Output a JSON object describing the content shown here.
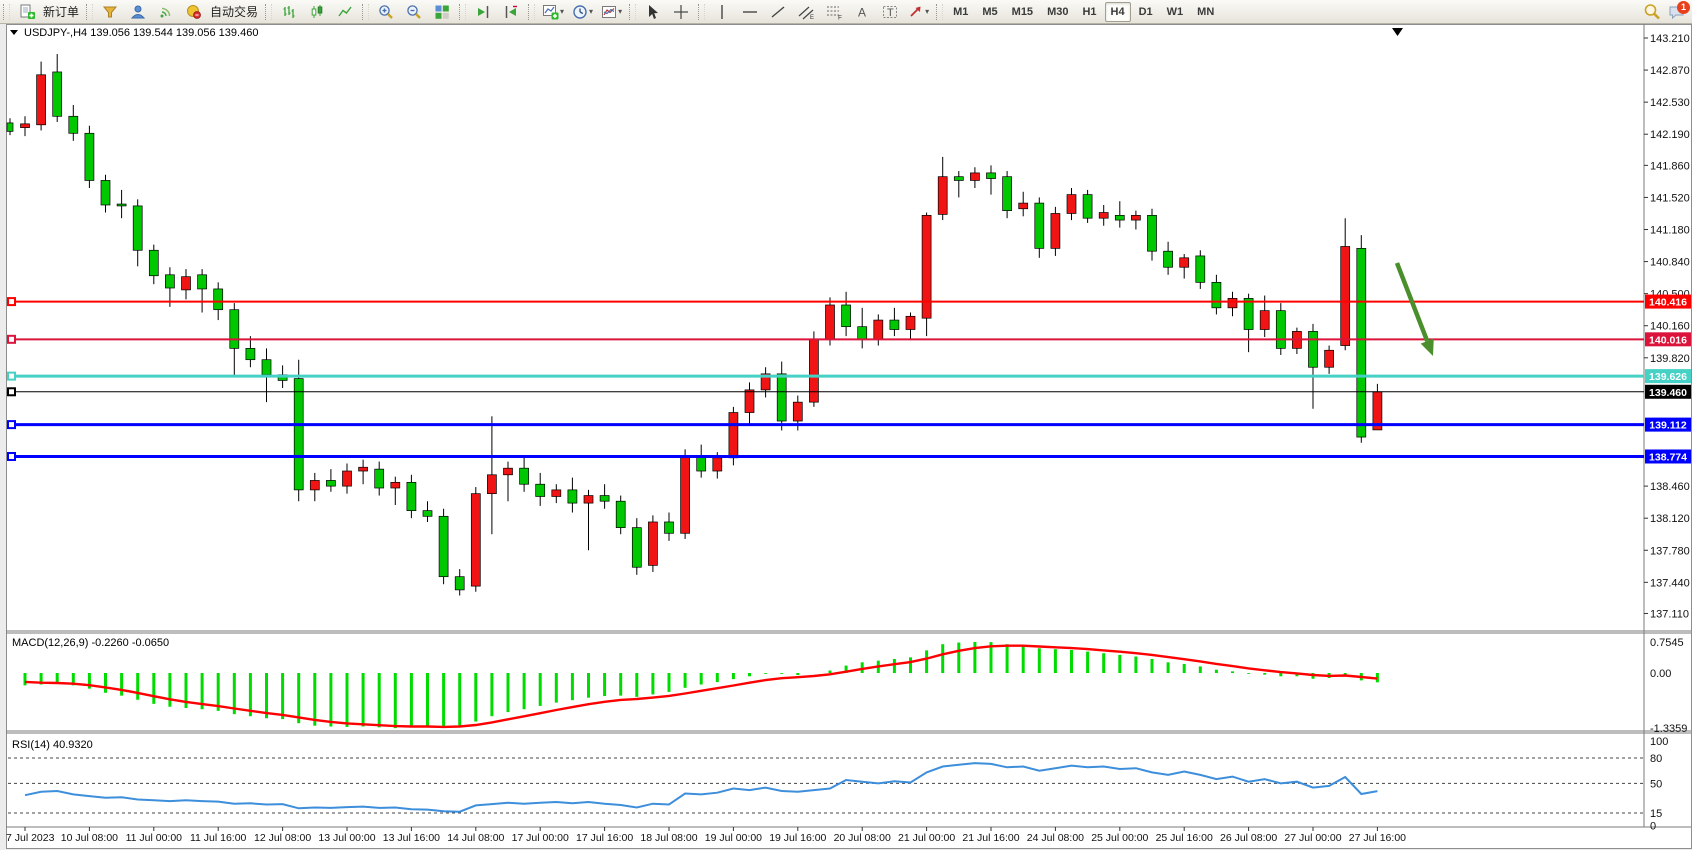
{
  "toolbar": {
    "new_order_label": "新订单",
    "autotrade_label": "自动交易",
    "timeframes": [
      "M1",
      "M5",
      "M15",
      "M30",
      "H1",
      "H4",
      "D1",
      "W1",
      "MN"
    ],
    "active_timeframe": "H4",
    "chat_badge": "1"
  },
  "chart": {
    "title_line": "USDJPY-,H4  139.056 139.544 139.056 139.460",
    "macd_label": "MACD(12,26,9) -0.2260 -0.0650",
    "rsi_label": "RSI(14) 40.9320"
  },
  "chart_data": {
    "type": "candlestick",
    "symbol": "USDJPY-",
    "timeframe": "H4",
    "current_bar": {
      "open": 139.056,
      "high": 139.544,
      "low": 139.056,
      "close": 139.46
    },
    "colors": {
      "bull": "#f01414",
      "bear": "#00c800",
      "wick": "#000000",
      "macd_hist": "#00dc00",
      "macd_signal": "#ff0000",
      "rsi_line": "#3d8edb",
      "annotation_arrow": "#4a8f2c"
    },
    "x_labels": [
      "7 Jul 2023",
      "10 Jul 08:00",
      "11 Jul 00:00",
      "11 Jul 16:00",
      "12 Jul 08:00",
      "13 Jul 00:00",
      "13 Jul 16:00",
      "14 Jul 08:00",
      "17 Jul 00:00",
      "17 Jul 16:00",
      "18 Jul 08:00",
      "19 Jul 00:00",
      "19 Jul 16:00",
      "20 Jul 08:00",
      "21 Jul 00:00",
      "21 Jul 16:00",
      "24 Jul 08:00",
      "25 Jul 00:00",
      "25 Jul 16:00",
      "26 Jul 08:00",
      "27 Jul 00:00",
      "27 Jul 16:00"
    ],
    "label_every": 4,
    "price_ticks": [
      "143.210",
      "142.870",
      "142.530",
      "142.190",
      "141.860",
      "141.520",
      "141.180",
      "140.840",
      "140.500",
      "140.160",
      "139.820",
      "138.460",
      "138.120",
      "137.780",
      "137.440",
      "137.110"
    ],
    "levels": [
      {
        "price": 140.416,
        "color": "#ff0000",
        "width": 2
      },
      {
        "price": 140.016,
        "color": "#dc143c",
        "width": 2
      },
      {
        "price": 139.626,
        "color": "#45d1c5",
        "width": 3
      },
      {
        "price": 139.46,
        "color": "#000000",
        "width": 1
      },
      {
        "price": 139.112,
        "color": "#0000ff",
        "width": 3
      },
      {
        "price": 138.774,
        "color": "#0000ff",
        "width": 3
      }
    ],
    "pre_candle": [
      142.31,
      142.36,
      142.18,
      142.22
    ],
    "candles": [
      [
        142.26,
        142.38,
        142.17,
        142.3
      ],
      [
        142.29,
        142.96,
        142.23,
        142.82
      ],
      [
        142.85,
        143.04,
        142.32,
        142.38
      ],
      [
        142.38,
        142.5,
        142.12,
        142.2
      ],
      [
        142.2,
        142.28,
        141.62,
        141.7
      ],
      [
        141.7,
        141.76,
        141.36,
        141.44
      ],
      [
        141.45,
        141.6,
        141.3,
        141.43
      ],
      [
        141.43,
        141.5,
        140.79,
        140.96
      ],
      [
        140.96,
        141.02,
        140.6,
        140.69
      ],
      [
        140.7,
        140.78,
        140.36,
        140.56
      ],
      [
        140.54,
        140.76,
        140.44,
        140.68
      ],
      [
        140.7,
        140.76,
        140.3,
        140.55
      ],
      [
        140.55,
        140.62,
        140.22,
        140.33
      ],
      [
        140.33,
        140.4,
        139.62,
        139.92
      ],
      [
        139.92,
        140.05,
        139.72,
        139.8
      ],
      [
        139.8,
        139.92,
        139.35,
        139.64
      ],
      [
        139.64,
        139.74,
        139.5,
        139.58
      ],
      [
        139.6,
        139.8,
        138.3,
        138.42
      ],
      [
        138.42,
        138.6,
        138.3,
        138.52
      ],
      [
        138.52,
        138.64,
        138.4,
        138.46
      ],
      [
        138.46,
        138.7,
        138.38,
        138.62
      ],
      [
        138.62,
        138.74,
        138.48,
        138.66
      ],
      [
        138.64,
        138.72,
        138.36,
        138.44
      ],
      [
        138.44,
        138.56,
        138.26,
        138.5
      ],
      [
        138.5,
        138.58,
        138.12,
        138.2
      ],
      [
        138.2,
        138.3,
        138.08,
        138.14
      ],
      [
        138.14,
        138.22,
        137.42,
        137.5
      ],
      [
        137.5,
        137.58,
        137.3,
        137.36
      ],
      [
        137.4,
        138.45,
        137.34,
        138.38
      ],
      [
        138.38,
        139.2,
        137.95,
        138.58
      ],
      [
        138.58,
        138.72,
        138.3,
        138.65
      ],
      [
        138.65,
        138.78,
        138.4,
        138.48
      ],
      [
        138.48,
        138.6,
        138.25,
        138.35
      ],
      [
        138.35,
        138.48,
        138.28,
        138.42
      ],
      [
        138.42,
        138.55,
        138.18,
        138.28
      ],
      [
        138.28,
        138.42,
        137.78,
        138.36
      ],
      [
        138.36,
        138.48,
        138.22,
        138.3
      ],
      [
        138.3,
        138.36,
        137.95,
        138.02
      ],
      [
        138.02,
        138.12,
        137.52,
        137.6
      ],
      [
        137.62,
        138.15,
        137.55,
        138.08
      ],
      [
        138.08,
        138.18,
        137.88,
        137.96
      ],
      [
        137.96,
        138.85,
        137.9,
        138.78
      ],
      [
        138.78,
        138.9,
        138.55,
        138.62
      ],
      [
        138.62,
        138.82,
        138.54,
        138.76
      ],
      [
        138.76,
        139.3,
        138.68,
        139.24
      ],
      [
        139.24,
        139.56,
        139.12,
        139.48
      ],
      [
        139.48,
        139.72,
        139.4,
        139.65
      ],
      [
        139.65,
        139.78,
        139.05,
        139.15
      ],
      [
        139.15,
        139.42,
        139.05,
        139.35
      ],
      [
        139.35,
        140.1,
        139.3,
        140.02
      ],
      [
        140.02,
        140.46,
        139.95,
        140.38
      ],
      [
        140.38,
        140.52,
        140.05,
        140.15
      ],
      [
        140.15,
        140.35,
        139.92,
        140.02
      ],
      [
        140.02,
        140.28,
        139.95,
        140.22
      ],
      [
        140.22,
        140.35,
        140.05,
        140.12
      ],
      [
        140.12,
        140.3,
        140.02,
        140.26
      ],
      [
        140.24,
        141.36,
        140.05,
        141.33
      ],
      [
        141.34,
        141.95,
        141.28,
        141.74
      ],
      [
        141.74,
        141.8,
        141.52,
        141.7
      ],
      [
        141.7,
        141.84,
        141.62,
        141.78
      ],
      [
        141.78,
        141.86,
        141.55,
        141.72
      ],
      [
        141.74,
        141.8,
        141.3,
        141.38
      ],
      [
        141.4,
        141.58,
        141.32,
        141.46
      ],
      [
        141.46,
        141.52,
        140.88,
        140.98
      ],
      [
        140.98,
        141.42,
        140.9,
        141.35
      ],
      [
        141.35,
        141.62,
        141.28,
        141.55
      ],
      [
        141.55,
        141.6,
        141.25,
        141.3
      ],
      [
        141.3,
        141.44,
        141.22,
        141.36
      ],
      [
        141.33,
        141.48,
        141.2,
        141.28
      ],
      [
        141.28,
        141.38,
        141.18,
        141.33
      ],
      [
        141.33,
        141.4,
        140.85,
        140.95
      ],
      [
        140.95,
        141.05,
        140.7,
        140.78
      ],
      [
        140.78,
        140.92,
        140.66,
        140.88
      ],
      [
        140.9,
        140.96,
        140.55,
        140.62
      ],
      [
        140.62,
        140.7,
        140.28,
        140.35
      ],
      [
        140.35,
        140.52,
        140.26,
        140.45
      ],
      [
        140.45,
        140.5,
        139.88,
        140.12
      ],
      [
        140.12,
        140.48,
        140.04,
        140.32
      ],
      [
        140.32,
        140.4,
        139.85,
        139.92
      ],
      [
        139.92,
        140.14,
        139.86,
        140.1
      ],
      [
        140.1,
        140.18,
        139.28,
        139.72
      ],
      [
        139.72,
        139.95,
        139.65,
        139.9
      ],
      [
        139.95,
        141.3,
        139.9,
        141.0
      ],
      [
        140.98,
        141.12,
        138.92,
        138.98
      ],
      [
        139.056,
        139.544,
        139.056,
        139.46
      ]
    ],
    "macd": {
      "params": "12,26,9",
      "value": -0.226,
      "signal_value": -0.065,
      "axis": [
        "0.7545",
        "0.00",
        "-1.3359"
      ],
      "hist": [
        -0.3,
        -0.28,
        -0.26,
        -0.3,
        -0.38,
        -0.48,
        -0.55,
        -0.65,
        -0.75,
        -0.82,
        -0.85,
        -0.88,
        -0.92,
        -1.0,
        -1.05,
        -1.1,
        -1.12,
        -1.22,
        -1.28,
        -1.3,
        -1.31,
        -1.3,
        -1.32,
        -1.34,
        -1.32,
        -1.3,
        -1.33,
        -1.28,
        -1.18,
        -1.05,
        -0.95,
        -0.88,
        -0.8,
        -0.72,
        -0.66,
        -0.6,
        -0.56,
        -0.55,
        -0.58,
        -0.52,
        -0.46,
        -0.36,
        -0.28,
        -0.22,
        -0.15,
        -0.08,
        -0.02,
        -0.02,
        -0.05,
        0.0,
        0.06,
        0.18,
        0.26,
        0.3,
        0.34,
        0.38,
        0.55,
        0.7,
        0.74,
        0.7545,
        0.75,
        0.7,
        0.66,
        0.6,
        0.58,
        0.56,
        0.52,
        0.48,
        0.44,
        0.4,
        0.34,
        0.26,
        0.22,
        0.16,
        0.08,
        0.04,
        -0.02,
        -0.04,
        -0.08,
        -0.08,
        -0.14,
        -0.12,
        -0.04,
        -0.18,
        -0.226
      ],
      "signal_smoothing": 0.3
    },
    "rsi": {
      "period": 14,
      "value": 40.932,
      "axis": [
        "100",
        "80",
        "50",
        "15",
        "0"
      ],
      "level_lines": [
        80,
        50,
        15
      ],
      "values": [
        36,
        40,
        41,
        37,
        35,
        33,
        33.5,
        31,
        30,
        29,
        30,
        29,
        28.5,
        26,
        26.5,
        25,
        25.5,
        20.5,
        21.5,
        21,
        22,
        22.5,
        21,
        21.5,
        19.5,
        19,
        17,
        16.5,
        24,
        25.5,
        27,
        26,
        27,
        28,
        26.5,
        28,
        26,
        24.5,
        21.5,
        26,
        25,
        38,
        37,
        39,
        44,
        42,
        45,
        41,
        40,
        42,
        44,
        54,
        52,
        50,
        52.5,
        51,
        63,
        70,
        72,
        74,
        73,
        69,
        70,
        65,
        68,
        71,
        69,
        70,
        67,
        68,
        63,
        60,
        64,
        60,
        55,
        58,
        52,
        55,
        50,
        52,
        45,
        47,
        57.5,
        37.5,
        40.93
      ]
    },
    "annotation": {
      "arrow_from": [
        1397,
        263
      ],
      "arrow_to": [
        1433,
        356
      ]
    }
  }
}
